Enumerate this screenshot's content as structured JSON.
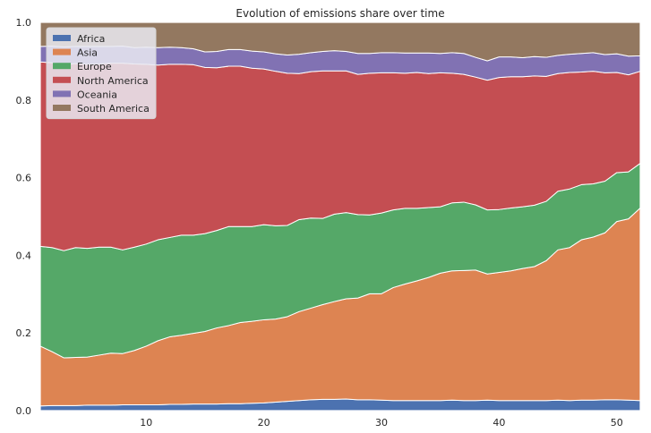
{
  "chart_data": {
    "type": "area",
    "stacked": true,
    "normalized": true,
    "title": "Evolution of emissions share over time",
    "xlabel": "",
    "ylabel": "",
    "xlim": [
      1,
      52
    ],
    "ylim": [
      0,
      1.0
    ],
    "xticks": [
      10,
      20,
      30,
      40,
      50
    ],
    "yticks": [
      0.0,
      0.2,
      0.4,
      0.6,
      0.8,
      1.0
    ],
    "ytick_labels": [
      "0.0",
      "0.2",
      "0.4",
      "0.6",
      "0.8",
      "1.0"
    ],
    "grid": false,
    "legend_position": "top-left",
    "x": [
      1,
      2,
      3,
      4,
      5,
      6,
      7,
      8,
      9,
      10,
      11,
      12,
      13,
      14,
      15,
      16,
      17,
      18,
      19,
      20,
      21,
      22,
      23,
      24,
      25,
      26,
      27,
      28,
      29,
      30,
      31,
      32,
      33,
      34,
      35,
      36,
      37,
      38,
      39,
      40,
      41,
      42,
      43,
      44,
      45,
      46,
      47,
      48,
      49,
      50,
      51,
      52
    ],
    "series": [
      {
        "name": "Africa",
        "color": "#4c72b0",
        "values": [
          0.012,
          0.013,
          0.013,
          0.013,
          0.014,
          0.014,
          0.014,
          0.015,
          0.015,
          0.015,
          0.015,
          0.016,
          0.016,
          0.017,
          0.017,
          0.017,
          0.018,
          0.018,
          0.019,
          0.02,
          0.022,
          0.024,
          0.026,
          0.028,
          0.029,
          0.029,
          0.03,
          0.028,
          0.028,
          0.027,
          0.026,
          0.026,
          0.026,
          0.026,
          0.026,
          0.027,
          0.026,
          0.026,
          0.027,
          0.026,
          0.026,
          0.026,
          0.026,
          0.026,
          0.027,
          0.026,
          0.027,
          0.027,
          0.028,
          0.028,
          0.027,
          0.026
        ]
      },
      {
        "name": "Asia",
        "color": "#dd8452",
        "values": [
          0.154,
          0.139,
          0.123,
          0.124,
          0.124,
          0.129,
          0.134,
          0.132,
          0.14,
          0.151,
          0.165,
          0.174,
          0.178,
          0.182,
          0.187,
          0.196,
          0.201,
          0.209,
          0.211,
          0.214,
          0.214,
          0.218,
          0.229,
          0.236,
          0.244,
          0.252,
          0.258,
          0.262,
          0.273,
          0.274,
          0.291,
          0.3,
          0.308,
          0.317,
          0.328,
          0.333,
          0.335,
          0.336,
          0.325,
          0.33,
          0.334,
          0.34,
          0.345,
          0.36,
          0.387,
          0.394,
          0.413,
          0.42,
          0.43,
          0.459,
          0.467,
          0.496
        ]
      },
      {
        "name": "Europe",
        "color": "#55a868",
        "values": [
          0.257,
          0.268,
          0.276,
          0.283,
          0.28,
          0.278,
          0.273,
          0.267,
          0.266,
          0.263,
          0.26,
          0.256,
          0.258,
          0.253,
          0.252,
          0.251,
          0.255,
          0.247,
          0.244,
          0.245,
          0.24,
          0.235,
          0.237,
          0.232,
          0.222,
          0.225,
          0.222,
          0.215,
          0.203,
          0.208,
          0.2,
          0.195,
          0.187,
          0.18,
          0.171,
          0.175,
          0.176,
          0.168,
          0.165,
          0.162,
          0.162,
          0.159,
          0.158,
          0.153,
          0.151,
          0.151,
          0.142,
          0.137,
          0.133,
          0.126,
          0.121,
          0.115
        ]
      },
      {
        "name": "North America",
        "color": "#c44e52",
        "values": [
          0.475,
          0.476,
          0.479,
          0.474,
          0.474,
          0.472,
          0.474,
          0.481,
          0.472,
          0.463,
          0.45,
          0.446,
          0.44,
          0.439,
          0.428,
          0.419,
          0.413,
          0.413,
          0.408,
          0.401,
          0.398,
          0.392,
          0.376,
          0.377,
          0.38,
          0.369,
          0.365,
          0.361,
          0.365,
          0.361,
          0.353,
          0.348,
          0.35,
          0.345,
          0.345,
          0.334,
          0.329,
          0.329,
          0.334,
          0.34,
          0.338,
          0.335,
          0.333,
          0.322,
          0.303,
          0.3,
          0.29,
          0.29,
          0.279,
          0.258,
          0.25,
          0.237
        ]
      },
      {
        "name": "Oceania",
        "color": "#8172b3",
        "values": [
          0.04,
          0.043,
          0.046,
          0.044,
          0.046,
          0.045,
          0.043,
          0.044,
          0.042,
          0.044,
          0.045,
          0.044,
          0.043,
          0.041,
          0.04,
          0.042,
          0.043,
          0.043,
          0.044,
          0.044,
          0.045,
          0.047,
          0.05,
          0.049,
          0.05,
          0.052,
          0.05,
          0.054,
          0.051,
          0.052,
          0.052,
          0.052,
          0.05,
          0.053,
          0.05,
          0.053,
          0.054,
          0.051,
          0.05,
          0.053,
          0.051,
          0.049,
          0.05,
          0.049,
          0.047,
          0.047,
          0.048,
          0.048,
          0.047,
          0.048,
          0.048,
          0.04
        ]
      },
      {
        "name": "South America",
        "color": "#937860",
        "values": [
          0.062,
          0.061,
          0.063,
          0.062,
          0.062,
          0.062,
          0.062,
          0.061,
          0.065,
          0.064,
          0.065,
          0.064,
          0.065,
          0.068,
          0.076,
          0.075,
          0.07,
          0.07,
          0.074,
          0.076,
          0.081,
          0.084,
          0.082,
          0.078,
          0.075,
          0.073,
          0.075,
          0.08,
          0.08,
          0.078,
          0.078,
          0.079,
          0.079,
          0.079,
          0.08,
          0.078,
          0.08,
          0.09,
          0.099,
          0.089,
          0.089,
          0.091,
          0.088,
          0.09,
          0.085,
          0.082,
          0.08,
          0.078,
          0.083,
          0.081,
          0.087,
          0.086
        ]
      }
    ]
  }
}
